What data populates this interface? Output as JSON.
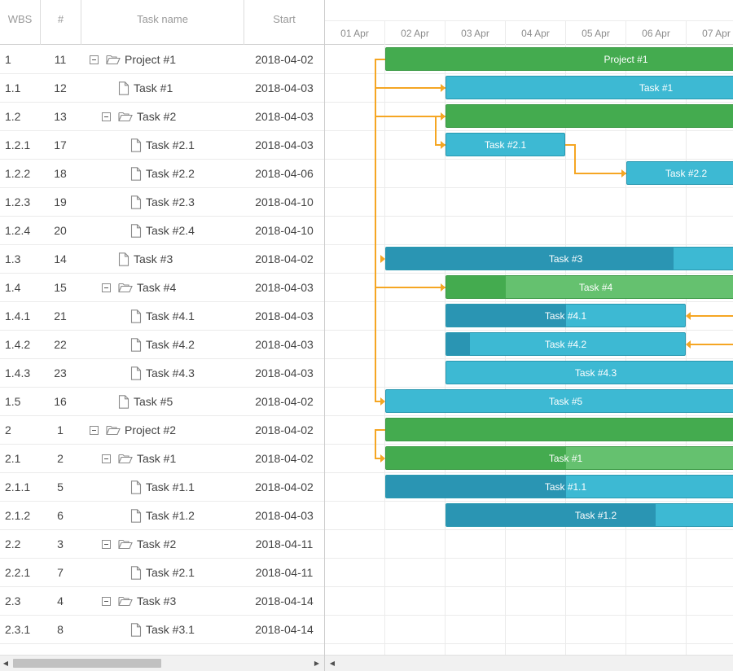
{
  "columns": {
    "wbs": "WBS",
    "num": "#",
    "name": "Task name",
    "start": "Start"
  },
  "scale_days": [
    "01 Apr",
    "02 Apr",
    "03 Apr",
    "04 Apr",
    "05 Apr",
    "06 Apr",
    "07 Apr"
  ],
  "rows": [
    {
      "wbs": "1",
      "num": "11",
      "name": "Project #1",
      "start": "2018-04-02",
      "level": 0,
      "kind": "folder"
    },
    {
      "wbs": "1.1",
      "num": "12",
      "name": "Task #1",
      "start": "2018-04-03",
      "level": 1,
      "kind": "file"
    },
    {
      "wbs": "1.2",
      "num": "13",
      "name": "Task #2",
      "start": "2018-04-03",
      "level": 1,
      "kind": "folder"
    },
    {
      "wbs": "1.2.1",
      "num": "17",
      "name": "Task #2.1",
      "start": "2018-04-03",
      "level": 2,
      "kind": "file"
    },
    {
      "wbs": "1.2.2",
      "num": "18",
      "name": "Task #2.2",
      "start": "2018-04-06",
      "level": 2,
      "kind": "file"
    },
    {
      "wbs": "1.2.3",
      "num": "19",
      "name": "Task #2.3",
      "start": "2018-04-10",
      "level": 2,
      "kind": "file"
    },
    {
      "wbs": "1.2.4",
      "num": "20",
      "name": "Task #2.4",
      "start": "2018-04-10",
      "level": 2,
      "kind": "file"
    },
    {
      "wbs": "1.3",
      "num": "14",
      "name": "Task #3",
      "start": "2018-04-02",
      "level": 1,
      "kind": "file"
    },
    {
      "wbs": "1.4",
      "num": "15",
      "name": "Task #4",
      "start": "2018-04-03",
      "level": 1,
      "kind": "folder"
    },
    {
      "wbs": "1.4.1",
      "num": "21",
      "name": "Task #4.1",
      "start": "2018-04-03",
      "level": 2,
      "kind": "file"
    },
    {
      "wbs": "1.4.2",
      "num": "22",
      "name": "Task #4.2",
      "start": "2018-04-03",
      "level": 2,
      "kind": "file"
    },
    {
      "wbs": "1.4.3",
      "num": "23",
      "name": "Task #4.3",
      "start": "2018-04-03",
      "level": 2,
      "kind": "file"
    },
    {
      "wbs": "1.5",
      "num": "16",
      "name": "Task #5",
      "start": "2018-04-02",
      "level": 1,
      "kind": "file"
    },
    {
      "wbs": "2",
      "num": "1",
      "name": "Project #2",
      "start": "2018-04-02",
      "level": 0,
      "kind": "folder"
    },
    {
      "wbs": "2.1",
      "num": "2",
      "name": "Task #1",
      "start": "2018-04-02",
      "level": 1,
      "kind": "folder"
    },
    {
      "wbs": "2.1.1",
      "num": "5",
      "name": "Task #1.1",
      "start": "2018-04-02",
      "level": 2,
      "kind": "file"
    },
    {
      "wbs": "2.1.2",
      "num": "6",
      "name": "Task #1.2",
      "start": "2018-04-03",
      "level": 2,
      "kind": "file"
    },
    {
      "wbs": "2.2",
      "num": "3",
      "name": "Task #2",
      "start": "2018-04-11",
      "level": 1,
      "kind": "folder"
    },
    {
      "wbs": "2.2.1",
      "num": "7",
      "name": "Task #2.1",
      "start": "2018-04-11",
      "level": 2,
      "kind": "file"
    },
    {
      "wbs": "2.3",
      "num": "4",
      "name": "Task #3",
      "start": "2018-04-14",
      "level": 1,
      "kind": "folder"
    },
    {
      "wbs": "2.3.1",
      "num": "8",
      "name": "Task #3.1",
      "start": "2018-04-14",
      "level": 2,
      "kind": "file"
    }
  ],
  "bars": [
    {
      "row": 0,
      "type": "project",
      "label": "Project #1",
      "start_day": 1,
      "end_day": 9,
      "progress": 0
    },
    {
      "row": 1,
      "type": "task",
      "label": "Task #1",
      "start_day": 2,
      "end_day": 9,
      "progress": 0
    },
    {
      "row": 2,
      "type": "project",
      "label": "",
      "start_day": 2,
      "end_day": 9,
      "progress": 0
    },
    {
      "row": 3,
      "type": "task",
      "label": "Task #2.1",
      "start_day": 2,
      "end_day": 4,
      "progress": 0
    },
    {
      "row": 4,
      "type": "task",
      "label": "Task #2.2",
      "start_day": 5,
      "end_day": 7,
      "progress": 0
    },
    {
      "row": 7,
      "type": "task",
      "label": "Task #3",
      "start_day": 1,
      "end_day": 7,
      "progress": 0.8
    },
    {
      "row": 8,
      "type": "parent",
      "label": "Task #4",
      "start_day": 2,
      "end_day": 7,
      "progress": 0.2
    },
    {
      "row": 9,
      "type": "task",
      "label": "Task #4.1",
      "start_day": 2,
      "end_day": 6,
      "progress": 0.5
    },
    {
      "row": 10,
      "type": "task",
      "label": "Task #4.2",
      "start_day": 2,
      "end_day": 6,
      "progress": 0.1
    },
    {
      "row": 11,
      "type": "task",
      "label": "Task #4.3",
      "start_day": 2,
      "end_day": 7,
      "progress": 0
    },
    {
      "row": 12,
      "type": "task",
      "label": "Task #5",
      "start_day": 1,
      "end_day": 7,
      "progress": 0
    },
    {
      "row": 13,
      "type": "project",
      "label": "",
      "start_day": 1,
      "end_day": 7,
      "progress": 0
    },
    {
      "row": 14,
      "type": "parent",
      "label": "Task #1",
      "start_day": 1,
      "end_day": 7,
      "progress": 0.5
    },
    {
      "row": 15,
      "type": "task",
      "label": "Task #1.1",
      "start_day": 1,
      "end_day": 7,
      "progress": 0.5
    },
    {
      "row": 16,
      "type": "task",
      "label": "Task #1.2",
      "start_day": 2,
      "end_day": 7,
      "progress": 0.7
    }
  ],
  "colors": {
    "project": "#44ab4f",
    "task": "#3db9d3",
    "task_progress": "#2a95b3",
    "parent": "#65c16f",
    "parent_progress": "#44ab4f",
    "link": "#f5a623"
  },
  "icons": {
    "expanded_toggle": "minus-square-icon",
    "folder": "folder-open-icon",
    "file": "file-icon"
  }
}
